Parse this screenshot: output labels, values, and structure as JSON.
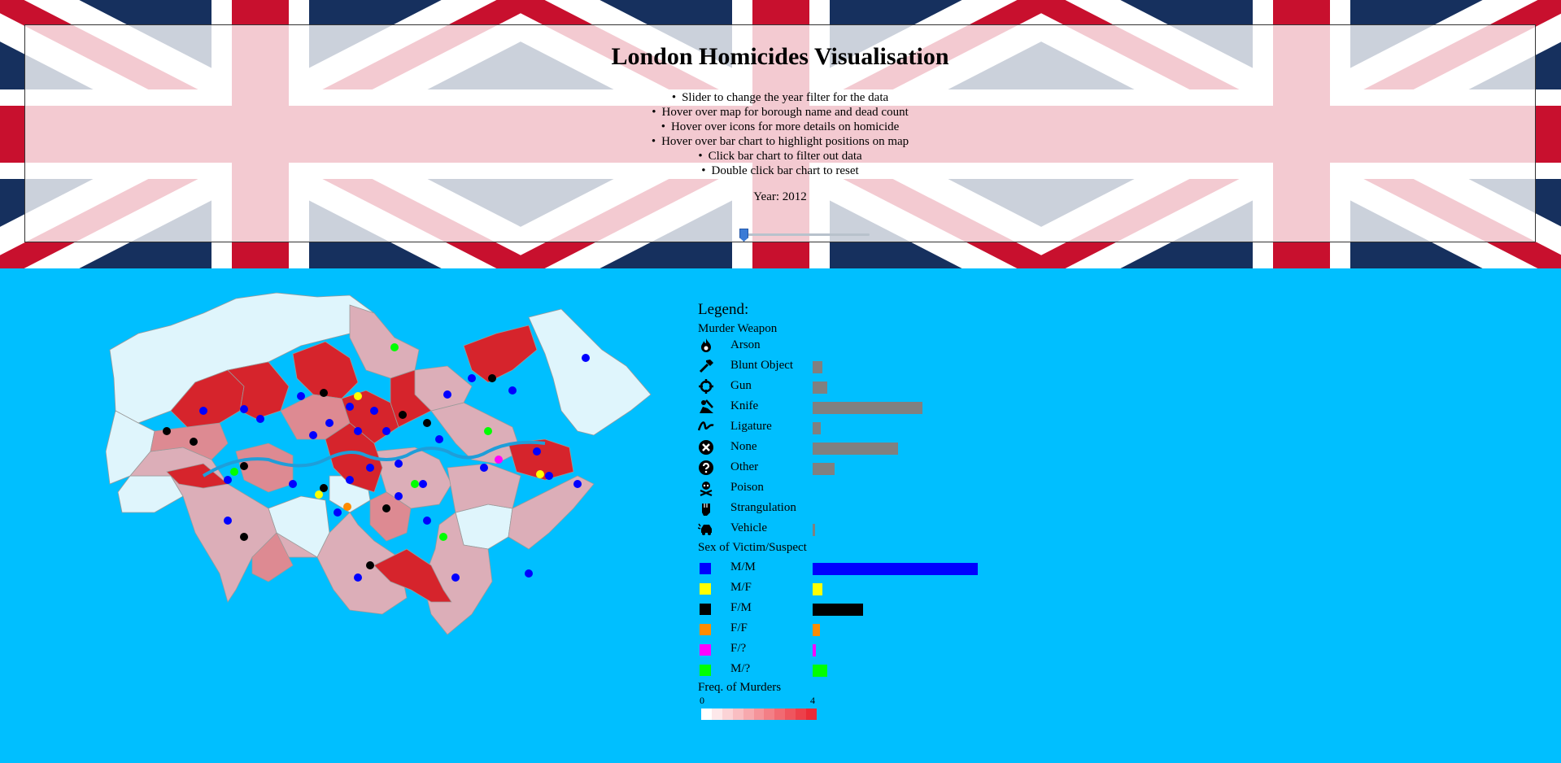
{
  "header": {
    "title": "London Homicides Visualisation",
    "instructions": [
      "Slider to change the year filter for the data",
      "Hover over map for borough name and dead count",
      "Hover over icons for more details on homicide",
      "Hover over bar chart to highlight positions on map",
      "Click bar chart to filter out data",
      "Double click bar chart to reset"
    ],
    "year_label": "Year: 2012",
    "slider": {
      "min": 2012,
      "max": 2018,
      "value": 2012
    }
  },
  "legend": {
    "title": "Legend:",
    "weapon_title": "Murder Weapon",
    "weapons": [
      {
        "label": "Arson",
        "icon": "fire-icon",
        "count": 0
      },
      {
        "label": "Blunt Object",
        "icon": "hammer-icon",
        "count": 1
      },
      {
        "label": "Gun",
        "icon": "crosshair-icon",
        "count": 1.5
      },
      {
        "label": "Knife",
        "icon": "knife-icon",
        "count": 11
      },
      {
        "label": "Ligature",
        "icon": "ligature-icon",
        "count": 0.8
      },
      {
        "label": "None",
        "icon": "x-circle-icon",
        "count": 8.5
      },
      {
        "label": "Other",
        "icon": "question-circle-icon",
        "count": 2.2
      },
      {
        "label": "Poison",
        "icon": "skull-crossbones-icon",
        "count": 0
      },
      {
        "label": "Strangulation",
        "icon": "fist-icon",
        "count": 0
      },
      {
        "label": "Vehicle",
        "icon": "car-crash-icon",
        "count": 0.25
      }
    ],
    "weapon_bar_color": "#808080",
    "sex_title": "Sex of Victim/Suspect",
    "sexes": [
      {
        "label": "M/M",
        "color": "#0000ff",
        "count": 16.5
      },
      {
        "label": "M/F",
        "color": "#ffff00",
        "count": 1
      },
      {
        "label": "F/M",
        "color": "#000000",
        "count": 5
      },
      {
        "label": "F/F",
        "color": "#ff8c00",
        "count": 0.7
      },
      {
        "label": "F/?",
        "color": "#ff00ff",
        "count": 0.3
      },
      {
        "label": "M/?",
        "color": "#00ff00",
        "count": 1.5
      }
    ],
    "freq_title": "Freq. of Murders",
    "freq_min": "0",
    "freq_max": "4",
    "freq_colors": [
      "#ffffff",
      "#fde8ea",
      "#fbd3d6",
      "#f9bec2",
      "#f7a9ae",
      "#f5949a",
      "#f37f86",
      "#f16a72",
      "#ef555e",
      "#ed404a",
      "#eb2b36"
    ]
  },
  "map": {
    "colors": {
      "none": "#dff5fc",
      "low": "#dcaeb8",
      "high": "#d6242c",
      "mid": "#dd8a92",
      "river": "#1f9ed9"
    }
  }
}
